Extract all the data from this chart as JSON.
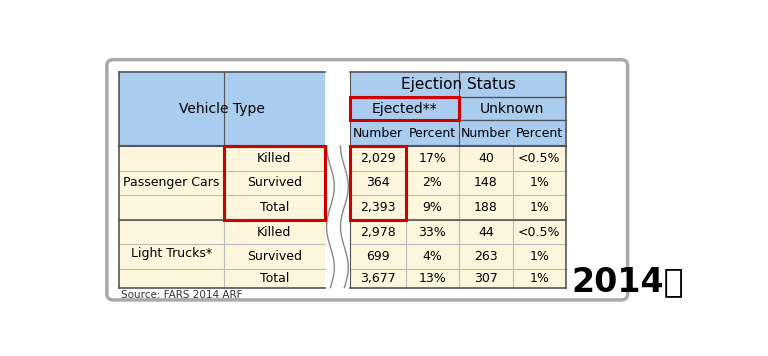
{
  "title": "Ejection Status",
  "subtitle_ejected": "Ejected**",
  "subtitle_unknown": "Unknown",
  "col_headers": [
    "Number",
    "Percent",
    "Number",
    "Percent"
  ],
  "row_groups": [
    {
      "group": "Passenger Cars",
      "rows": [
        {
          "label": "Killed",
          "ej_num": "2,029",
          "ej_pct": "17%",
          "un_num": "40",
          "un_pct": "<0.5%"
        },
        {
          "label": "Survived",
          "ej_num": "364",
          "ej_pct": "2%",
          "un_num": "148",
          "un_pct": "1%"
        },
        {
          "label": "Total",
          "ej_num": "2,393",
          "ej_pct": "9%",
          "un_num": "188",
          "un_pct": "1%"
        }
      ]
    },
    {
      "group": "Light Trucks*",
      "rows": [
        {
          "label": "Killed",
          "ej_num": "2,978",
          "ej_pct": "33%",
          "un_num": "44",
          "un_pct": "<0.5%"
        },
        {
          "label": "Survived",
          "ej_num": "699",
          "ej_pct": "4%",
          "un_num": "263",
          "un_pct": "1%"
        },
        {
          "label": "Total",
          "ej_num": "3,677",
          "ej_pct": "13%",
          "un_num": "307",
          "un_pct": "1%"
        }
      ]
    }
  ],
  "source_text": "Source: FARS 2014 ARF",
  "year_label": "2014年",
  "color_blue": "#AACCEE",
  "color_cream": "#FDF5DC",
  "color_red": "#CC0000",
  "color_outer_border": "#999999",
  "color_grid": "#BBBBBB",
  "color_dark_line": "#555555"
}
